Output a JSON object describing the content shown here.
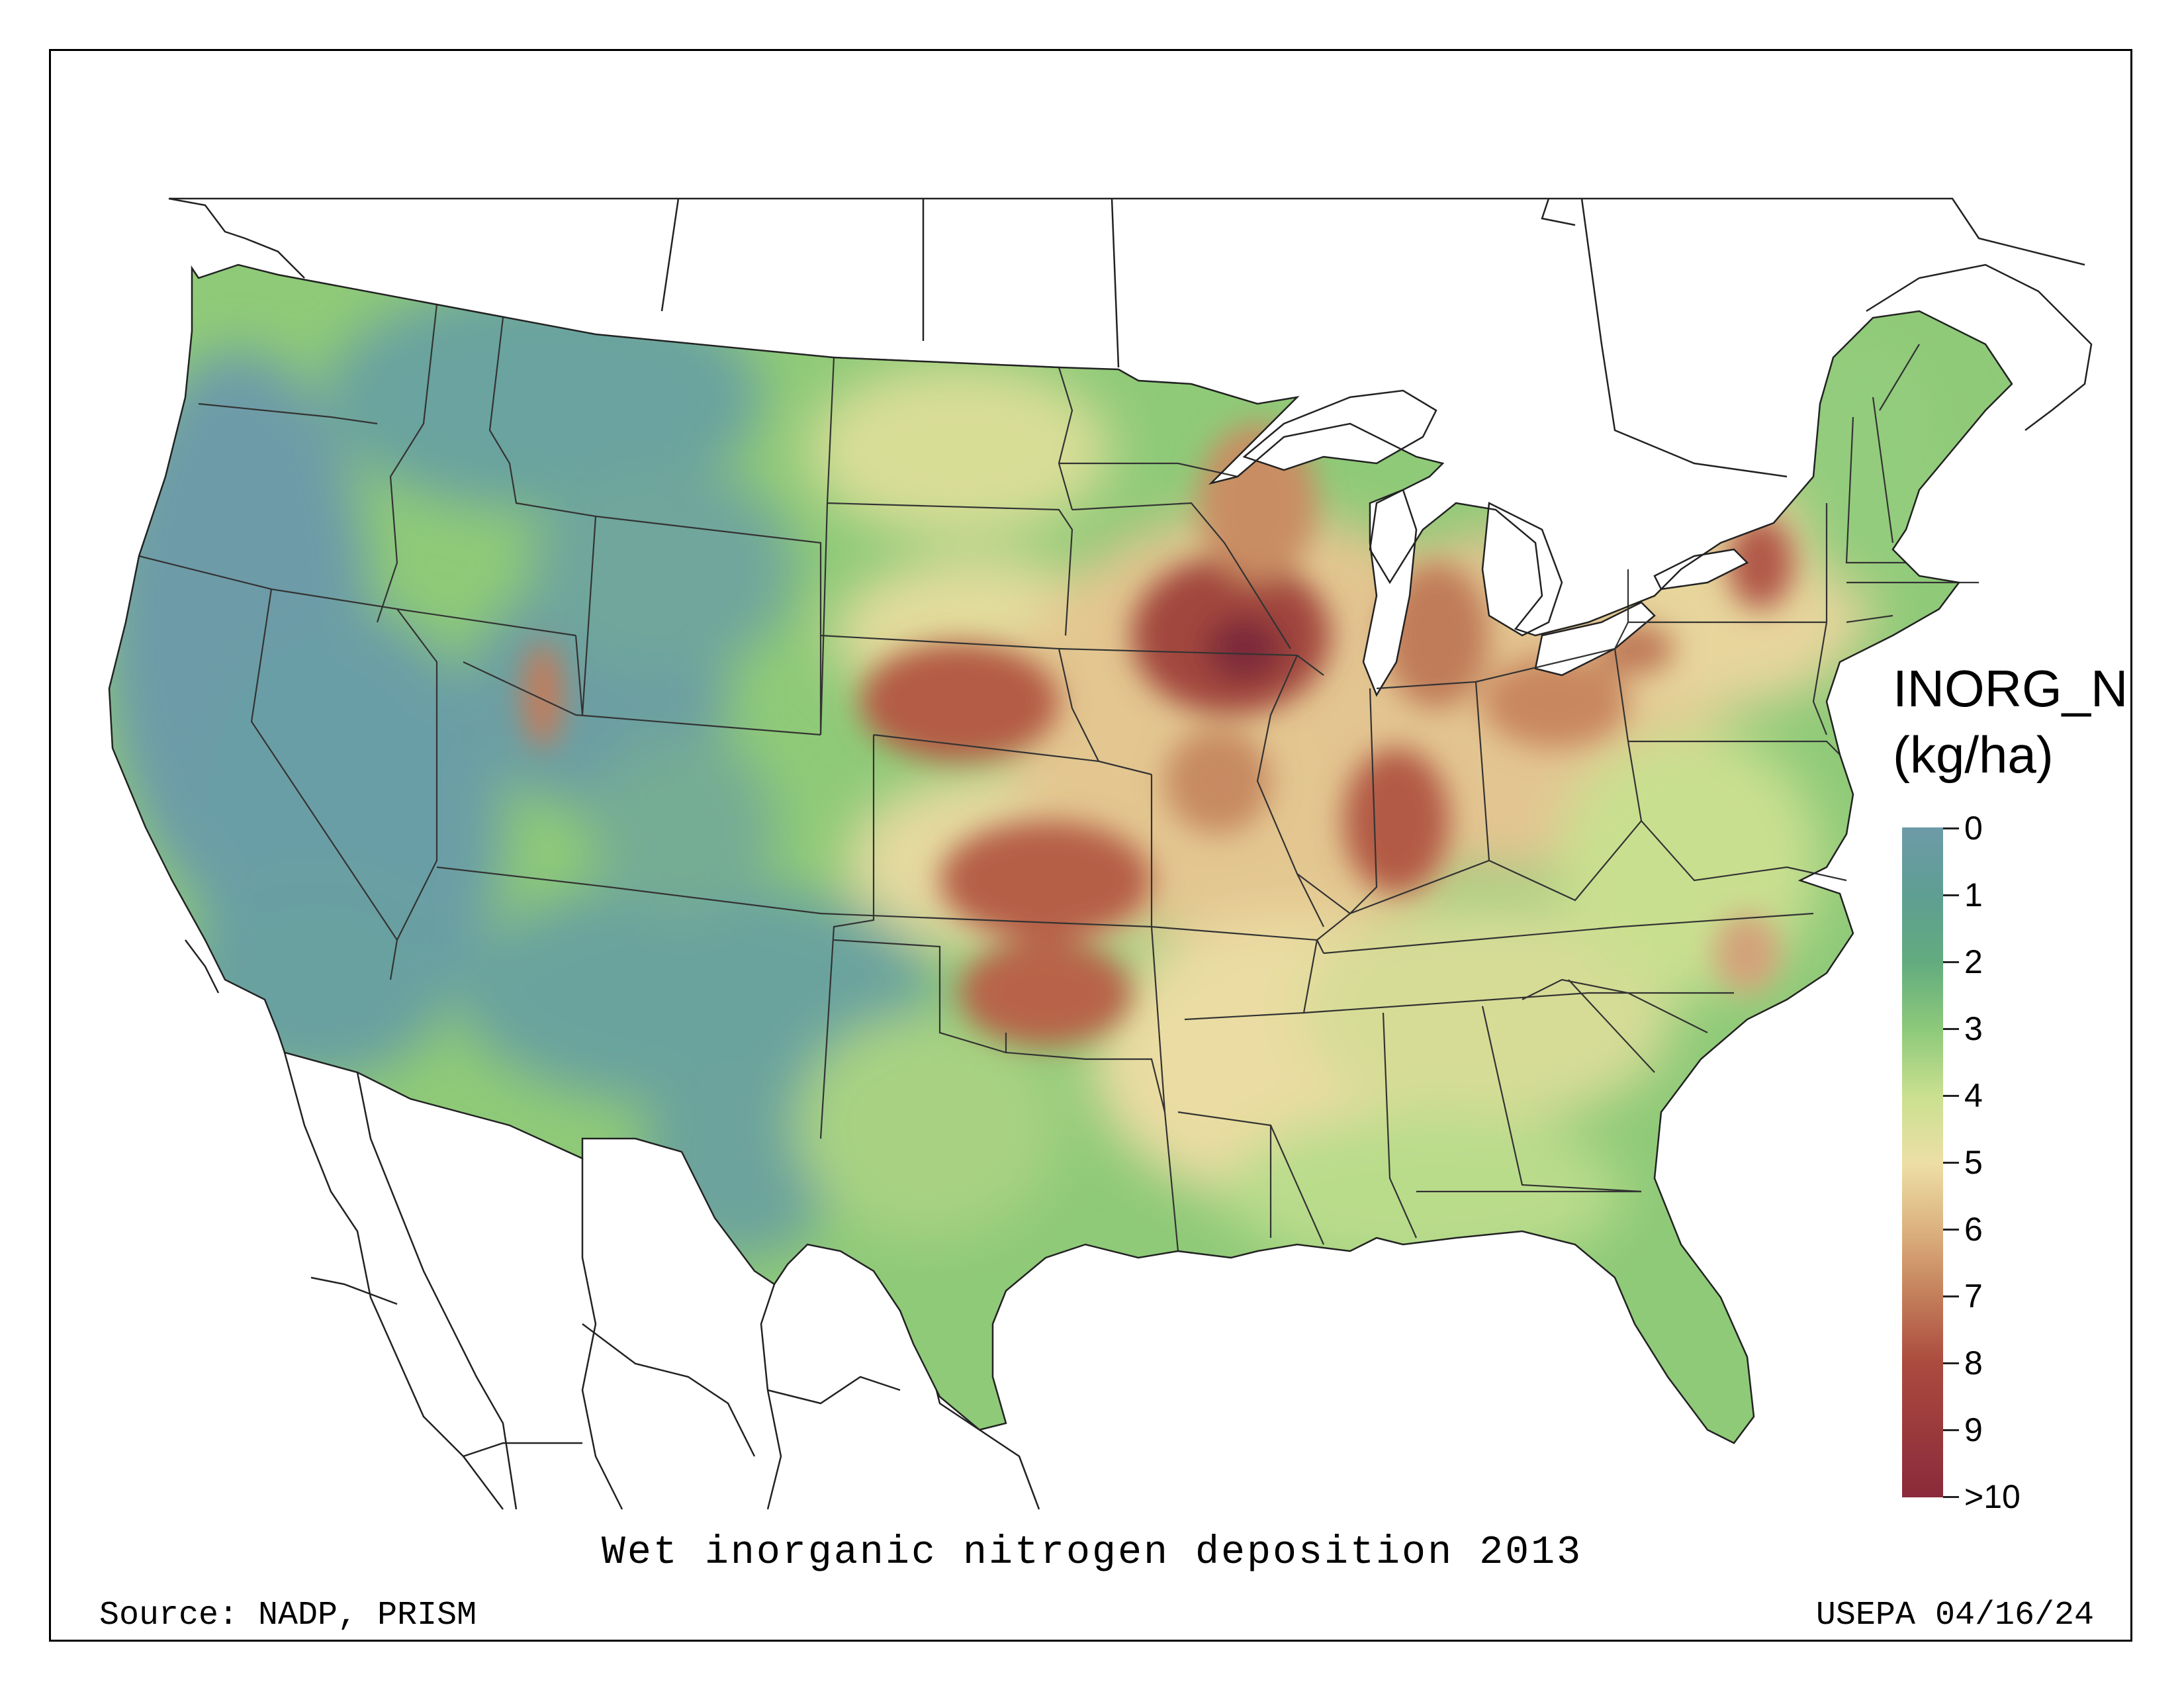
{
  "map": {
    "title": "Wet inorganic nitrogen deposition 2013",
    "source": "Source: NADP, PRISM",
    "credit": "USEPA 04/16/24",
    "legend": {
      "title_line1": "INORG_N",
      "title_line2": "(kg/ha)",
      "ticks": [
        "0",
        "1",
        "2",
        "3",
        "4",
        "5",
        "6",
        "7",
        "8",
        "9",
        ">10"
      ]
    },
    "colors": {
      "low": "#6d9ba8",
      "mid_low": "#8cc97a",
      "mid": "#eddfa6",
      "high": "#c37e5a",
      "max": "#8a2a3b"
    }
  }
}
